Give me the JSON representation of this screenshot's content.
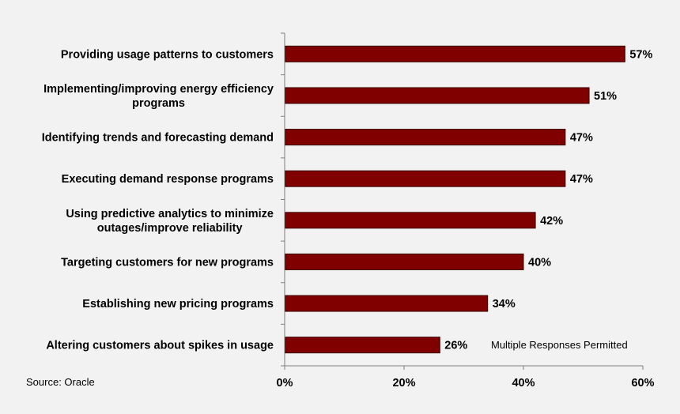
{
  "source_text": "Source: Oracle",
  "note_text": "Multiple Responses Permitted",
  "colors": {
    "bar_fill": "#800000",
    "bar_stroke": "#3a0000",
    "axis": "#7f7f7f",
    "background": "#f2f2f2"
  },
  "chart_data": {
    "type": "bar",
    "orientation": "horizontal",
    "title": "",
    "xlabel": "",
    "ylabel": "",
    "categories": [
      [
        "Providing usage patterns to customers"
      ],
      [
        "Implementing/improving energy efficiency",
        "programs"
      ],
      [
        "Identifying trends and forecasting demand"
      ],
      [
        "Executing demand response programs"
      ],
      [
        "Using predictive analytics to minimize",
        "outages/improve reliability"
      ],
      [
        "Targeting customers for new programs"
      ],
      [
        "Establishing new pricing programs"
      ],
      [
        "Altering customers about spikes in usage"
      ]
    ],
    "values": [
      57,
      51,
      47,
      47,
      42,
      40,
      34,
      26
    ],
    "value_labels": [
      "57%",
      "51%",
      "47%",
      "47%",
      "42%",
      "40%",
      "34%",
      "26%"
    ],
    "xlim": [
      0,
      60
    ],
    "x_ticks": [
      0,
      20,
      40,
      60
    ],
    "x_tick_labels": [
      "0%",
      "20%",
      "40%",
      "60%"
    ],
    "grid": false,
    "legend": "none"
  }
}
